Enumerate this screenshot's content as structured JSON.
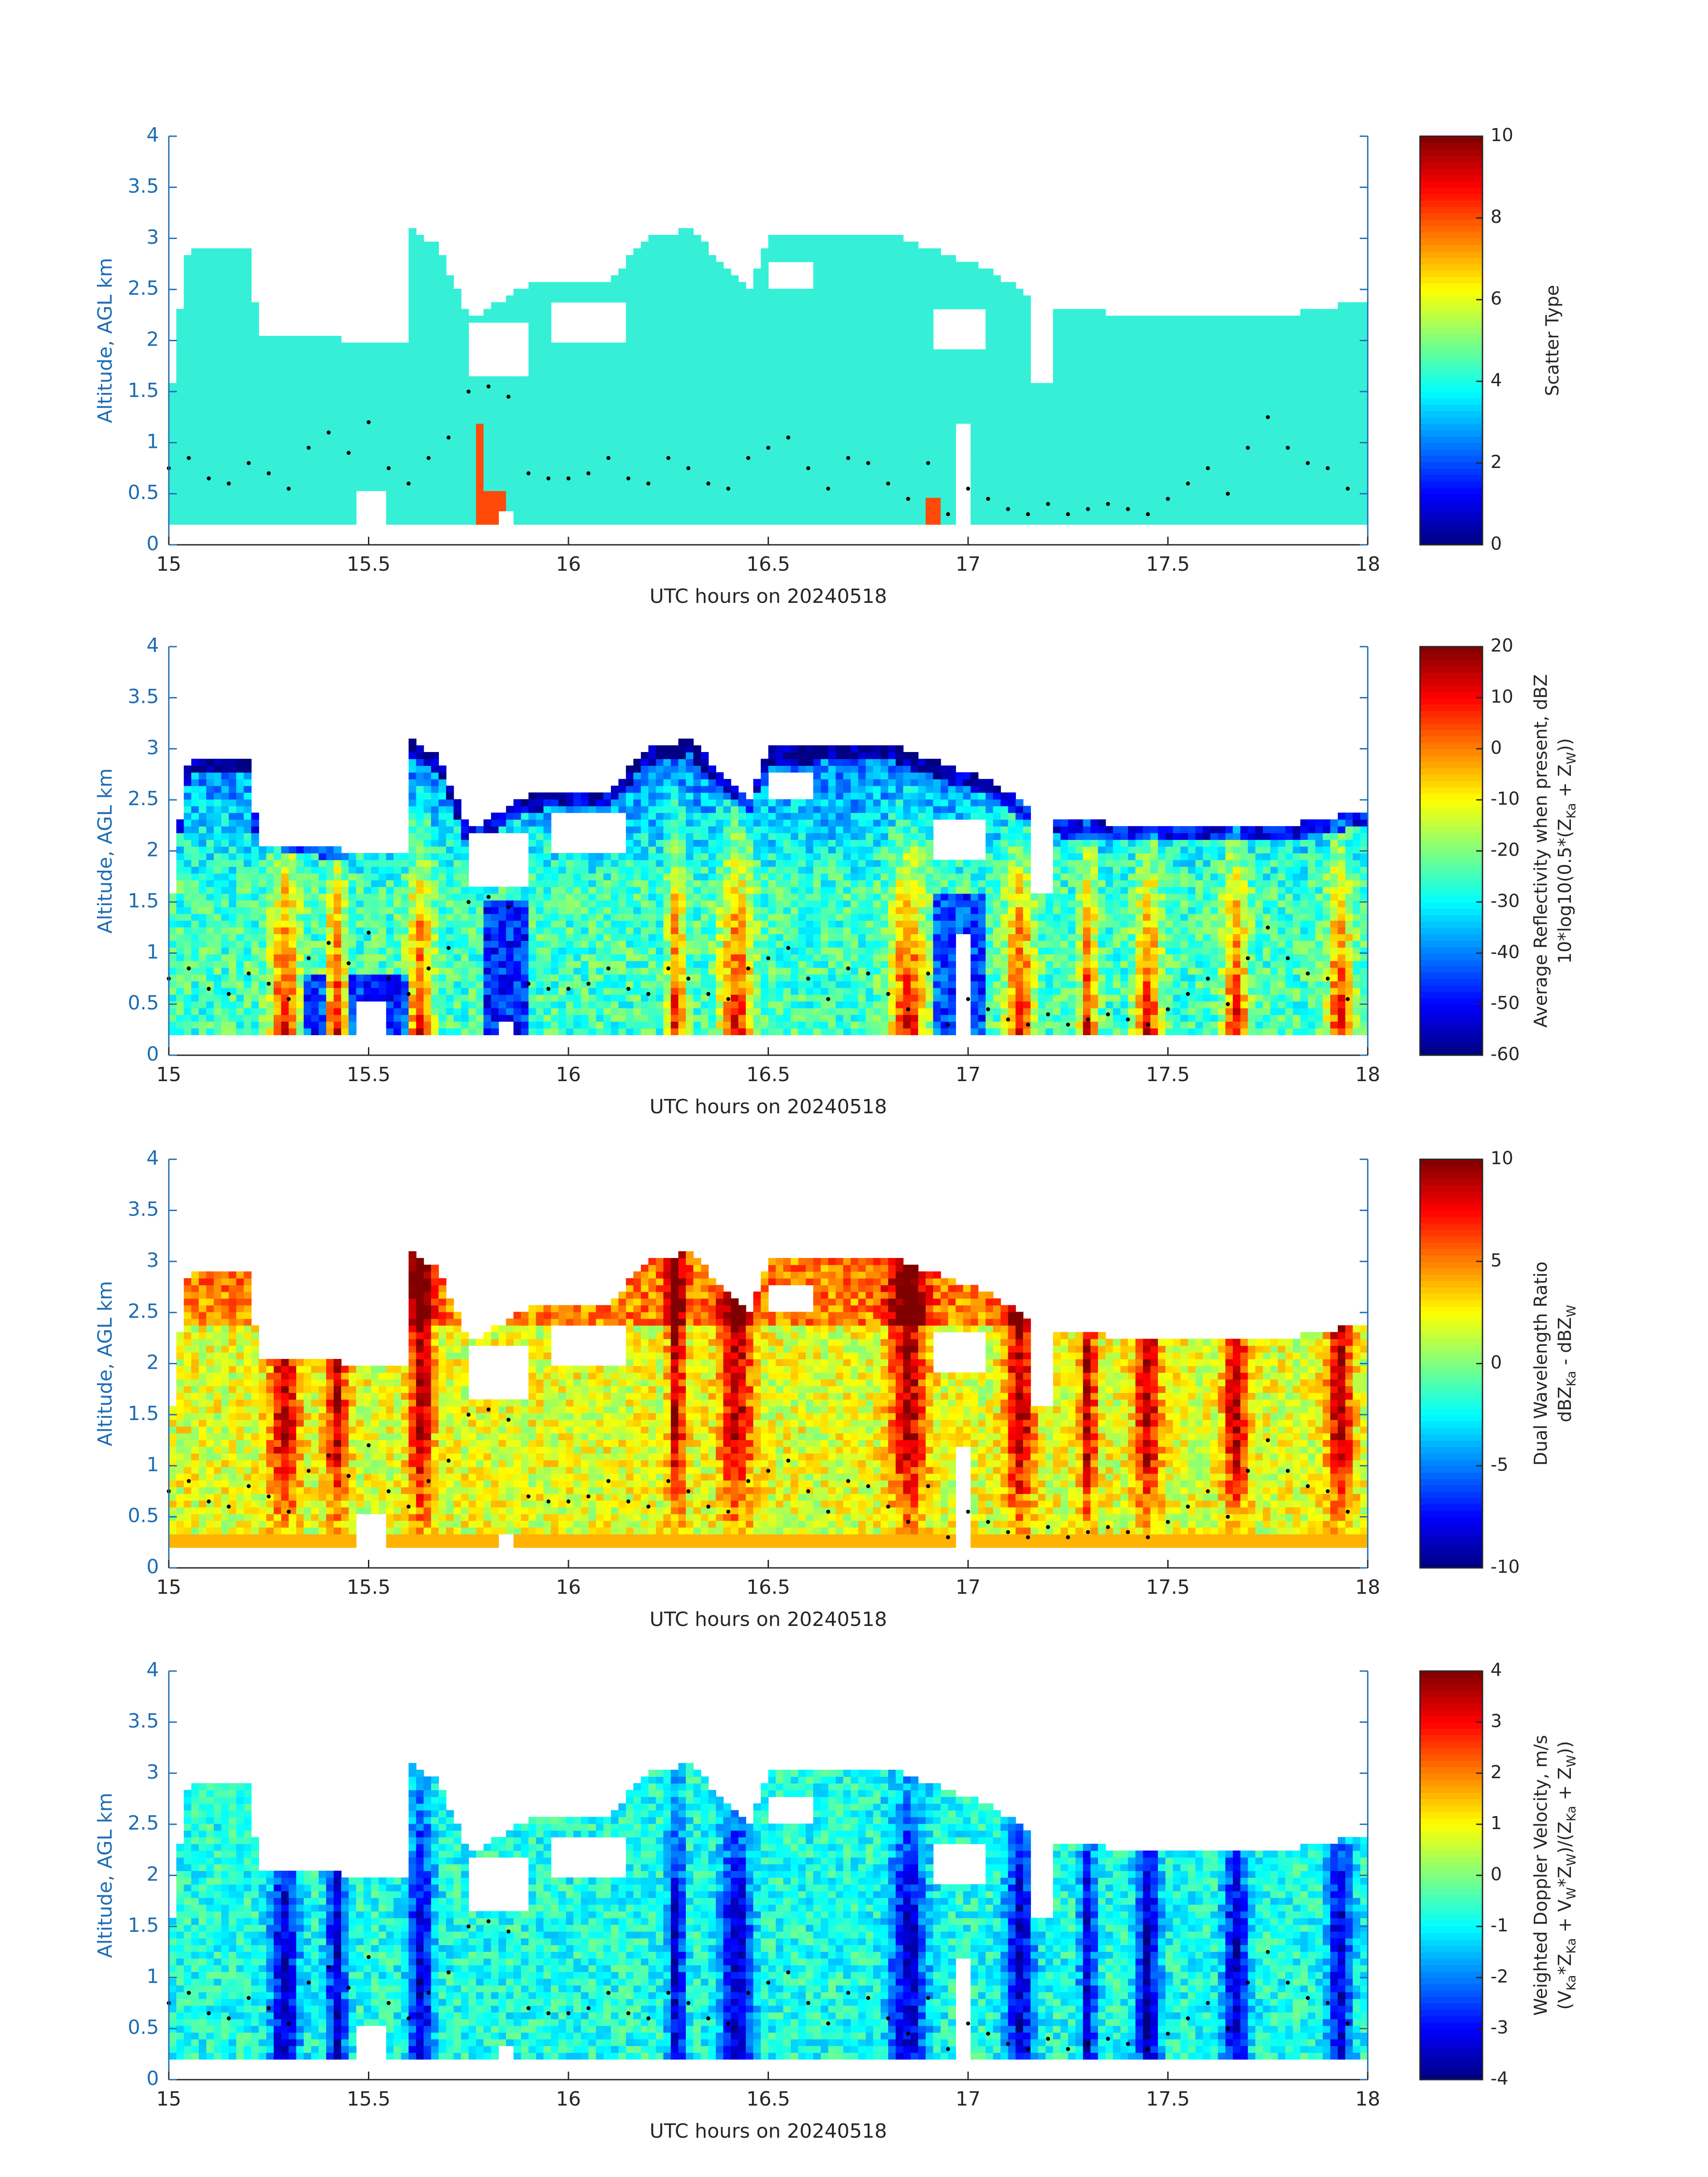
{
  "chart_data": [
    {
      "type": "heatmap",
      "xlabel": "UTC hours on 20240518",
      "ylabel": "Altitude, AGL km",
      "xlim": [
        15,
        18
      ],
      "ylim": [
        0,
        4
      ],
      "xticks": [
        "15",
        "15.5",
        "16",
        "16.5",
        "17",
        "17.5",
        "18"
      ],
      "yticks": [
        "0",
        "0.5",
        "1",
        "1.5",
        "2",
        "2.5",
        "3",
        "3.5",
        "4"
      ],
      "colorbar": {
        "label_lines": [
          "Scatter Type"
        ],
        "range": [
          0,
          10
        ],
        "ticks": [
          "0",
          "2",
          "4",
          "6",
          "8",
          "10"
        ],
        "colormap": "jet"
      },
      "field": "scatter",
      "overlay": "cloud-base dots (black)"
    },
    {
      "type": "heatmap",
      "xlabel": "UTC hours on 20240518",
      "ylabel": "Altitude, AGL km",
      "xlim": [
        15,
        18
      ],
      "ylim": [
        0,
        4
      ],
      "xticks": [
        "15",
        "15.5",
        "16",
        "16.5",
        "17",
        "17.5",
        "18"
      ],
      "yticks": [
        "0",
        "0.5",
        "1",
        "1.5",
        "2",
        "2.5",
        "3",
        "3.5",
        "4"
      ],
      "colorbar": {
        "label_lines": [
          "Average Reflectivity when present, dBZ",
          "10*log10(0.5*(Z",
          "Ka",
          " + Z",
          "W",
          "))"
        ],
        "range": [
          -60,
          20
        ],
        "ticks": [
          "-60",
          "-50",
          "-40",
          "-30",
          "-20",
          "-10",
          "0",
          "10",
          "20"
        ],
        "colormap": "jet"
      },
      "field": "reflectivity",
      "overlay": "cloud-base dots (black)"
    },
    {
      "type": "heatmap",
      "xlabel": "UTC hours on 20240518",
      "ylabel": "Altitude, AGL km",
      "xlim": [
        15,
        18
      ],
      "ylim": [
        0,
        4
      ],
      "xticks": [
        "15",
        "15.5",
        "16",
        "16.5",
        "17",
        "17.5",
        "18"
      ],
      "yticks": [
        "0",
        "0.5",
        "1",
        "1.5",
        "2",
        "2.5",
        "3",
        "3.5",
        "4"
      ],
      "colorbar": {
        "label_lines": [
          "Dual Wavelength Ratio",
          "dBZ",
          "Ka",
          " - dBZ",
          "W"
        ],
        "range": [
          -10,
          10
        ],
        "ticks": [
          "-10",
          "-5",
          "0",
          "5",
          "10"
        ],
        "colormap": "jet"
      },
      "field": "dwr",
      "overlay": "cloud-base dots (black)"
    },
    {
      "type": "heatmap",
      "xlabel": "UTC hours on 20240518",
      "ylabel": "Altitude, AGL km",
      "xlim": [
        15,
        18
      ],
      "ylim": [
        0,
        4
      ],
      "xticks": [
        "15",
        "15.5",
        "16",
        "16.5",
        "17",
        "17.5",
        "18"
      ],
      "yticks": [
        "0",
        "0.5",
        "1",
        "1.5",
        "2",
        "2.5",
        "3",
        "3.5",
        "4"
      ],
      "colorbar": {
        "label_lines": [
          "Weighted Doppler Velocity, m/s",
          "(V",
          "Ka",
          "*Z",
          "Ka",
          " + V",
          "W",
          "*Z",
          "W",
          ")/(Z",
          "Ka",
          " + Z",
          "W",
          "))"
        ],
        "range": [
          -4,
          4
        ],
        "ticks": [
          "-4",
          "-3",
          "-2",
          "-1",
          "0",
          "1",
          "2",
          "3",
          "4"
        ],
        "colormap": "jet"
      },
      "field": "velocity",
      "overlay": "cloud-base dots (black)"
    }
  ],
  "cloud_base_km": [
    [
      15.0,
      0.75
    ],
    [
      15.05,
      0.85
    ],
    [
      15.1,
      0.65
    ],
    [
      15.15,
      0.6
    ],
    [
      15.2,
      0.8
    ],
    [
      15.25,
      0.7
    ],
    [
      15.3,
      0.55
    ],
    [
      15.35,
      0.95
    ],
    [
      15.4,
      1.1
    ],
    [
      15.45,
      0.9
    ],
    [
      15.5,
      1.2
    ],
    [
      15.55,
      0.75
    ],
    [
      15.6,
      0.6
    ],
    [
      15.65,
      0.85
    ],
    [
      15.7,
      1.05
    ],
    [
      15.75,
      1.5
    ],
    [
      15.8,
      1.55
    ],
    [
      15.85,
      1.45
    ],
    [
      15.9,
      0.7
    ],
    [
      15.95,
      0.65
    ],
    [
      16.0,
      0.65
    ],
    [
      16.05,
      0.7
    ],
    [
      16.1,
      0.85
    ],
    [
      16.15,
      0.65
    ],
    [
      16.2,
      0.6
    ],
    [
      16.25,
      0.85
    ],
    [
      16.3,
      0.75
    ],
    [
      16.35,
      0.6
    ],
    [
      16.4,
      0.55
    ],
    [
      16.45,
      0.85
    ],
    [
      16.5,
      0.95
    ],
    [
      16.55,
      1.05
    ],
    [
      16.6,
      0.75
    ],
    [
      16.65,
      0.55
    ],
    [
      16.7,
      0.85
    ],
    [
      16.75,
      0.8
    ],
    [
      16.8,
      0.6
    ],
    [
      16.85,
      0.45
    ],
    [
      16.9,
      0.8
    ],
    [
      16.95,
      0.3
    ],
    [
      17.0,
      0.55
    ],
    [
      17.05,
      0.45
    ],
    [
      17.1,
      0.35
    ],
    [
      17.15,
      0.3
    ],
    [
      17.2,
      0.4
    ],
    [
      17.25,
      0.3
    ],
    [
      17.3,
      0.35
    ],
    [
      17.35,
      0.4
    ],
    [
      17.4,
      0.35
    ],
    [
      17.45,
      0.3
    ],
    [
      17.5,
      0.45
    ],
    [
      17.55,
      0.6
    ],
    [
      17.6,
      0.75
    ],
    [
      17.65,
      0.5
    ],
    [
      17.7,
      0.95
    ],
    [
      17.75,
      1.25
    ],
    [
      17.8,
      0.95
    ],
    [
      17.85,
      0.8
    ],
    [
      17.9,
      0.75
    ],
    [
      17.95,
      0.55
    ]
  ],
  "colors": {
    "axis_blue": "#1f6db3",
    "scatter_main": "#35f0d6",
    "scatter_precip": "#ff4a0a",
    "dot": "#000000"
  }
}
